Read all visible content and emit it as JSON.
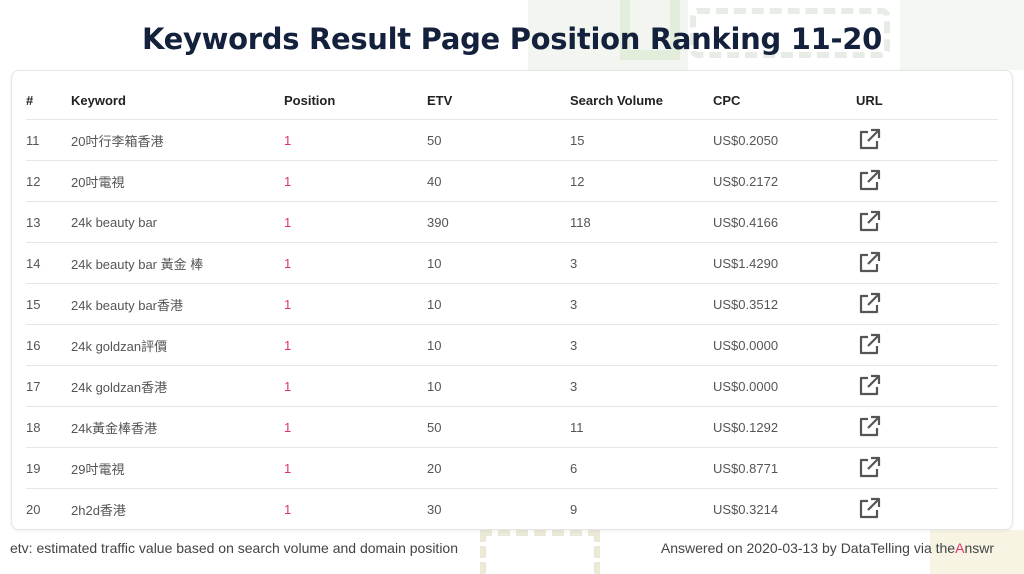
{
  "title": "Keywords Result Page Position Ranking 11-20",
  "colors": {
    "accent": "#e0336e",
    "title": "#14213d"
  },
  "table": {
    "headers": {
      "num": "#",
      "keyword": "Keyword",
      "position": "Position",
      "etv": "ETV",
      "volume": "Search Volume",
      "cpc": "CPC",
      "url": "URL"
    },
    "rows": [
      {
        "num": "11",
        "keyword": "20吋行李箱香港",
        "position": "1",
        "etv": "50",
        "volume": "15",
        "cpc": "US$0.2050",
        "url_icon": "external-link-icon"
      },
      {
        "num": "12",
        "keyword": "20吋電視",
        "position": "1",
        "etv": "40",
        "volume": "12",
        "cpc": "US$0.2172",
        "url_icon": "external-link-icon"
      },
      {
        "num": "13",
        "keyword": "24k beauty bar",
        "position": "1",
        "etv": "390",
        "volume": "118",
        "cpc": "US$0.4166",
        "url_icon": "external-link-icon"
      },
      {
        "num": "14",
        "keyword": "24k beauty bar 黃金 棒",
        "position": "1",
        "etv": "10",
        "volume": "3",
        "cpc": "US$1.4290",
        "url_icon": "external-link-icon"
      },
      {
        "num": "15",
        "keyword": "24k beauty bar香港",
        "position": "1",
        "etv": "10",
        "volume": "3",
        "cpc": "US$0.3512",
        "url_icon": "external-link-icon"
      },
      {
        "num": "16",
        "keyword": "24k goldzan評價",
        "position": "1",
        "etv": "10",
        "volume": "3",
        "cpc": "US$0.0000",
        "url_icon": "external-link-icon"
      },
      {
        "num": "17",
        "keyword": "24k goldzan香港",
        "position": "1",
        "etv": "10",
        "volume": "3",
        "cpc": "US$0.0000",
        "url_icon": "external-link-icon"
      },
      {
        "num": "18",
        "keyword": "24k黃金棒香港",
        "position": "1",
        "etv": "50",
        "volume": "11",
        "cpc": "US$0.1292",
        "url_icon": "external-link-icon"
      },
      {
        "num": "19",
        "keyword": "29吋電視",
        "position": "1",
        "etv": "20",
        "volume": "6",
        "cpc": "US$0.8771",
        "url_icon": "external-link-icon"
      },
      {
        "num": "20",
        "keyword": "2h2d香港",
        "position": "1",
        "etv": "30",
        "volume": "9",
        "cpc": "US$0.3214",
        "url_icon": "external-link-icon"
      }
    ]
  },
  "footer": {
    "note": "etv: estimated traffic value based on search volume and domain position",
    "credit_prefix": "Answered on 2020-03-13 by DataTelling via the",
    "credit_brand_a": "A",
    "credit_brand_rest": "nswr"
  }
}
